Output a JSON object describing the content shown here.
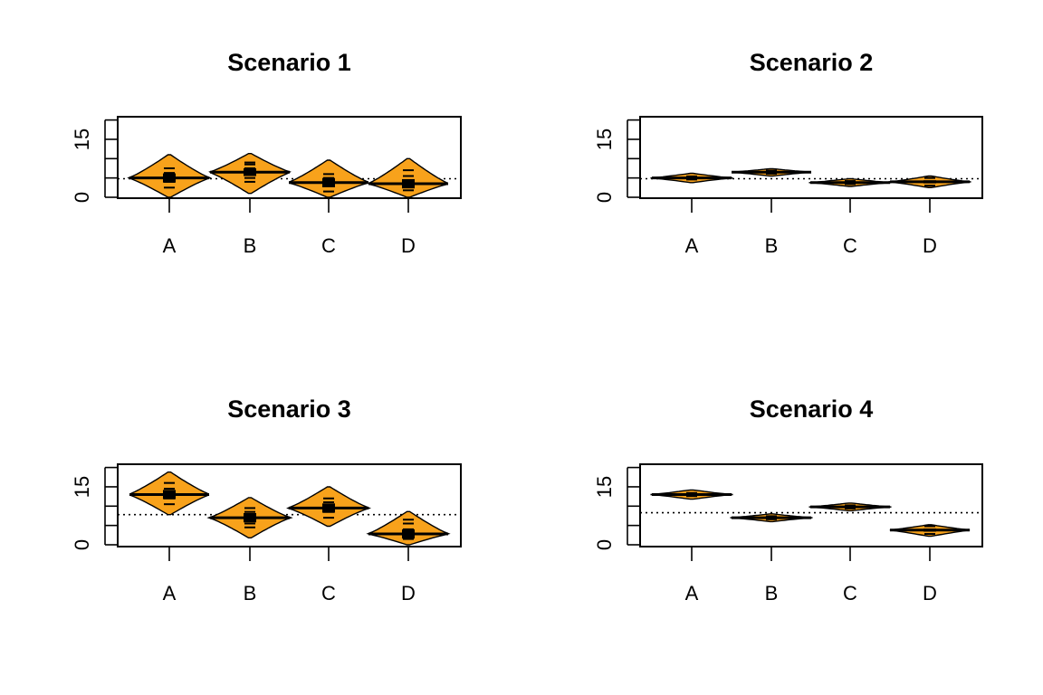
{
  "chart_data": [
    {
      "type": "violin",
      "title": "Scenario 1",
      "categories": [
        "A",
        "B",
        "C",
        "D"
      ],
      "ylim": [
        0,
        20
      ],
      "yticks": [
        0,
        5,
        10,
        15,
        20
      ],
      "yticklabels": [
        "0",
        "",
        "",
        "15",
        ""
      ],
      "reference_line": 4.8,
      "fill_color": "#F8A21B",
      "points_color": "#000000",
      "groups": [
        {
          "name": "A",
          "mean": 5.0,
          "min": 0.0,
          "max": 11.0,
          "ci": [
            3.8,
            6.2
          ],
          "points": [
            2.5,
            4.0,
            5.0,
            6.3,
            7.5
          ]
        },
        {
          "name": "B",
          "mean": 6.5,
          "min": 1.0,
          "max": 11.3,
          "ci": [
            5.5,
            7.5
          ],
          "points": [
            4.0,
            5.0,
            7.5,
            8.5,
            9.0
          ]
        },
        {
          "name": "C",
          "mean": 3.8,
          "min": 0.0,
          "max": 9.6,
          "ci": [
            2.6,
            5.0
          ],
          "points": [
            1.5,
            3.0,
            4.0,
            5.0,
            6.0
          ]
        },
        {
          "name": "D",
          "mean": 3.5,
          "min": 0.0,
          "max": 10.0,
          "ci": [
            2.3,
            4.7
          ],
          "points": [
            1.8,
            3.0,
            4.0,
            5.5,
            7.0
          ]
        }
      ]
    },
    {
      "type": "violin",
      "title": "Scenario 2",
      "categories": [
        "A",
        "B",
        "C",
        "D"
      ],
      "ylim": [
        0,
        20
      ],
      "yticks": [
        0,
        5,
        10,
        15,
        20
      ],
      "yticklabels": [
        "0",
        "",
        "",
        "15",
        ""
      ],
      "reference_line": 4.8,
      "fill_color": "#F8A21B",
      "points_color": "#C21E1E",
      "groups": [
        {
          "name": "A",
          "mean": 5.0,
          "min": 3.8,
          "max": 6.2,
          "ci": [
            4.7,
            5.3
          ],
          "points": [
            4.6,
            5.0,
            5.4
          ]
        },
        {
          "name": "B",
          "mean": 6.5,
          "min": 5.5,
          "max": 7.4,
          "ci": [
            6.2,
            6.8
          ],
          "points": [
            6.1,
            6.5,
            6.9
          ]
        },
        {
          "name": "C",
          "mean": 3.8,
          "min": 2.8,
          "max": 4.8,
          "ci": [
            3.5,
            4.1
          ],
          "points": [
            3.4,
            3.8,
            4.2
          ]
        },
        {
          "name": "D",
          "mean": 4.0,
          "min": 2.5,
          "max": 5.5,
          "ci": [
            3.6,
            4.4
          ],
          "points": [
            3.0,
            4.0,
            5.0
          ]
        }
      ]
    },
    {
      "type": "violin",
      "title": "Scenario 3",
      "categories": [
        "A",
        "B",
        "C",
        "D"
      ],
      "ylim": [
        0,
        20
      ],
      "yticks": [
        0,
        5,
        10,
        15,
        20
      ],
      "yticklabels": [
        "0",
        "",
        "",
        "15",
        ""
      ],
      "reference_line": 7.8,
      "fill_color": "#F8A21B",
      "points_color": "#000000",
      "groups": [
        {
          "name": "A",
          "mean": 13.0,
          "min": 7.8,
          "max": 18.8,
          "ci": [
            11.8,
            14.2
          ],
          "points": [
            10.5,
            12.0,
            13.0,
            14.5,
            16.0
          ]
        },
        {
          "name": "B",
          "mean": 7.0,
          "min": 1.8,
          "max": 12.2,
          "ci": [
            5.8,
            8.2
          ],
          "points": [
            4.5,
            5.5,
            7.0,
            8.5,
            9.5
          ]
        },
        {
          "name": "C",
          "mean": 9.5,
          "min": 4.8,
          "max": 15.0,
          "ci": [
            8.3,
            10.7
          ],
          "points": [
            7.0,
            8.5,
            10.0,
            11.0,
            12.0
          ]
        },
        {
          "name": "D",
          "mean": 2.8,
          "min": 0.0,
          "max": 8.6,
          "ci": [
            1.6,
            4.0
          ],
          "points": [
            1.5,
            2.5,
            4.0,
            5.5,
            6.5
          ]
        }
      ]
    },
    {
      "type": "violin",
      "title": "Scenario 4",
      "categories": [
        "A",
        "B",
        "C",
        "D"
      ],
      "ylim": [
        0,
        20
      ],
      "yticks": [
        0,
        5,
        10,
        15,
        20
      ],
      "yticklabels": [
        "0",
        "",
        "",
        "15",
        ""
      ],
      "reference_line": 8.3,
      "fill_color": "#F8A21B",
      "points_color": "#C21E1E",
      "groups": [
        {
          "name": "A",
          "mean": 13.0,
          "min": 11.8,
          "max": 14.2,
          "ci": [
            12.7,
            13.3
          ],
          "points": [
            12.6,
            13.0,
            13.4
          ]
        },
        {
          "name": "B",
          "mean": 7.0,
          "min": 6.0,
          "max": 8.0,
          "ci": [
            6.7,
            7.3
          ],
          "points": [
            6.6,
            7.0,
            7.4
          ]
        },
        {
          "name": "C",
          "mean": 9.8,
          "min": 8.8,
          "max": 10.8,
          "ci": [
            9.5,
            10.1
          ],
          "points": [
            9.4,
            9.8,
            10.2
          ]
        },
        {
          "name": "D",
          "mean": 3.8,
          "min": 2.2,
          "max": 5.2,
          "ci": [
            3.4,
            4.2
          ],
          "points": [
            2.8,
            3.8,
            4.8
          ]
        }
      ]
    }
  ]
}
